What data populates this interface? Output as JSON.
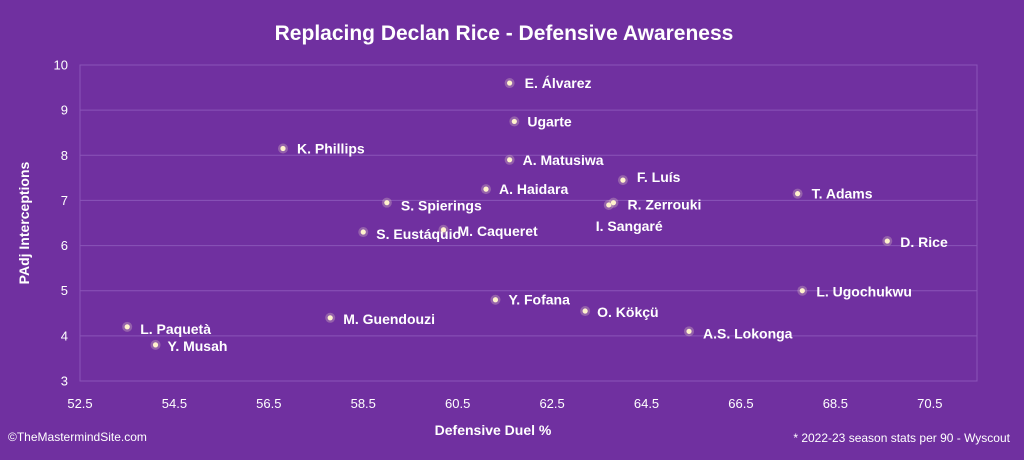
{
  "chart_data": {
    "type": "scatter",
    "title": "Replacing Declan Rice - Defensive Awareness",
    "xlabel": "Defensive Duel %",
    "ylabel": "PAdj Interceptions",
    "xlim": [
      52.5,
      71.5
    ],
    "ylim": [
      3,
      10
    ],
    "x_ticks": [
      "52.5",
      "54.5",
      "56.5",
      "58.5",
      "60.5",
      "62.5",
      "64.5",
      "66.5",
      "68.5",
      "70.5"
    ],
    "y_ticks": [
      "3",
      "4",
      "5",
      "6",
      "7",
      "8",
      "9",
      "10"
    ],
    "x_tick_values": [
      52.5,
      54.5,
      56.5,
      58.5,
      60.5,
      62.5,
      64.5,
      66.5,
      68.5,
      70.5
    ],
    "y_tick_values": [
      3,
      4,
      5,
      6,
      7,
      8,
      9,
      10
    ],
    "grid": "horizontal",
    "marker_color": "#fff2cc",
    "points": [
      {
        "label": "E. Álvarez",
        "x": 61.6,
        "y": 9.6
      },
      {
        "label": "Ugarte",
        "x": 61.7,
        "y": 8.75
      },
      {
        "label": "K. Phillips",
        "x": 56.8,
        "y": 8.15
      },
      {
        "label": "A. Matusiwa",
        "x": 61.6,
        "y": 7.9
      },
      {
        "label": "F. Luís",
        "x": 64.0,
        "y": 7.45
      },
      {
        "label": "A. Haidara",
        "x": 61.1,
        "y": 7.25
      },
      {
        "label": "T. Adams",
        "x": 67.7,
        "y": 7.15
      },
      {
        "label": "S. Spierings",
        "x": 59.0,
        "y": 6.95
      },
      {
        "label": "R. Zerrouki",
        "x": 63.8,
        "y": 6.95
      },
      {
        "label": "I. Sangaré",
        "x": 63.7,
        "y": 6.9
      },
      {
        "label": "M. Caqueret",
        "x": 60.2,
        "y": 6.35
      },
      {
        "label": "S. Eustáquio",
        "x": 58.5,
        "y": 6.3
      },
      {
        "label": "D. Rice",
        "x": 69.6,
        "y": 6.1
      },
      {
        "label": "L. Ugochukwu",
        "x": 67.8,
        "y": 5.0
      },
      {
        "label": "Y. Fofana",
        "x": 61.3,
        "y": 4.8
      },
      {
        "label": "O. Kökçü",
        "x": 63.2,
        "y": 4.55
      },
      {
        "label": "M. Guendouzi",
        "x": 57.8,
        "y": 4.4
      },
      {
        "label": "L. Paquetà",
        "x": 53.5,
        "y": 4.2
      },
      {
        "label": "A.S. Lokonga",
        "x": 65.4,
        "y": 4.1
      },
      {
        "label": "Y. Musah",
        "x": 54.1,
        "y": 3.8
      }
    ]
  },
  "footer": {
    "credit": "©TheMastermindSite.com",
    "note": "* 2022-23 season stats per 90 - Wyscout"
  }
}
